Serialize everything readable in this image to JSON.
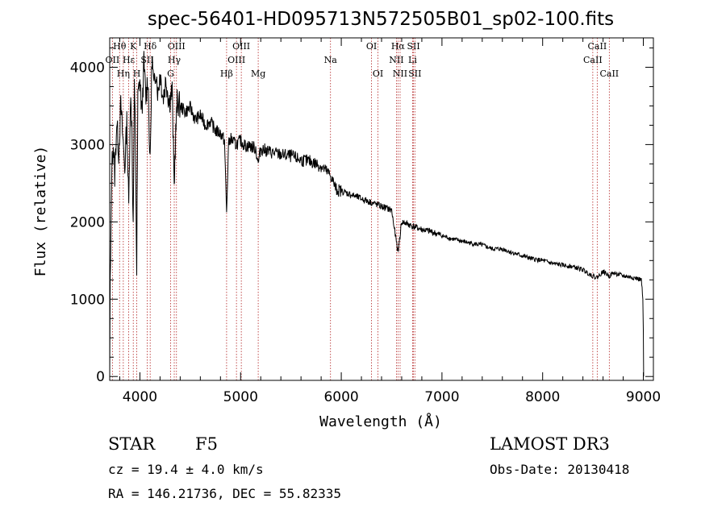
{
  "chart_data": {
    "type": "line",
    "title": "spec-56401-HD095713N572505B01_sp02-100.fits",
    "xlabel": "Wavelength (Å)",
    "ylabel": "Flux (relative)",
    "xlim": [
      3700,
      9100
    ],
    "ylim": [
      -50,
      4380
    ],
    "x_ticks": [
      4000,
      5000,
      6000,
      7000,
      8000,
      9000
    ],
    "y_ticks": [
      0,
      1000,
      2000,
      3000,
      4000
    ],
    "grid": false,
    "series": [
      {
        "name": "flux",
        "anchors": [
          [
            3700,
            0
          ],
          [
            3705,
            1200
          ],
          [
            3712,
            1700
          ],
          [
            3720,
            2700
          ],
          [
            3735,
            3000
          ],
          [
            3750,
            2600
          ],
          [
            3770,
            3300
          ],
          [
            3790,
            2900
          ],
          [
            3810,
            3500
          ],
          [
            3830,
            3100
          ],
          [
            3850,
            2700
          ],
          [
            3870,
            3300
          ],
          [
            3889,
            2200
          ],
          [
            3905,
            3600
          ],
          [
            3920,
            3300
          ],
          [
            3933,
            1900
          ],
          [
            3945,
            3700
          ],
          [
            3955,
            3200
          ],
          [
            3968,
            1300
          ],
          [
            3980,
            3600
          ],
          [
            4000,
            3850
          ],
          [
            4020,
            3400
          ],
          [
            4040,
            4050
          ],
          [
            4060,
            3600
          ],
          [
            4080,
            3900
          ],
          [
            4101,
            2700
          ],
          [
            4120,
            4150
          ],
          [
            4140,
            3700
          ],
          [
            4160,
            4000
          ],
          [
            4180,
            3650
          ],
          [
            4200,
            3950
          ],
          [
            4230,
            3600
          ],
          [
            4260,
            3850
          ],
          [
            4290,
            3550
          ],
          [
            4320,
            3700
          ],
          [
            4340,
            2450
          ],
          [
            4355,
            3150
          ],
          [
            4370,
            3550
          ],
          [
            4400,
            3500
          ],
          [
            4450,
            3420
          ],
          [
            4500,
            3480
          ],
          [
            4550,
            3320
          ],
          [
            4600,
            3380
          ],
          [
            4650,
            3250
          ],
          [
            4700,
            3300
          ],
          [
            4750,
            3180
          ],
          [
            4800,
            3150
          ],
          [
            4840,
            3050
          ],
          [
            4861,
            2100
          ],
          [
            4880,
            3000
          ],
          [
            4900,
            3080
          ],
          [
            4950,
            3000
          ],
          [
            5000,
            3050
          ],
          [
            5050,
            2980
          ],
          [
            5100,
            2980
          ],
          [
            5150,
            2950
          ],
          [
            5175,
            2750
          ],
          [
            5200,
            2950
          ],
          [
            5300,
            2900
          ],
          [
            5400,
            2870
          ],
          [
            5500,
            2850
          ],
          [
            5600,
            2800
          ],
          [
            5700,
            2780
          ],
          [
            5800,
            2720
          ],
          [
            5893,
            2600
          ],
          [
            5950,
            2420
          ],
          [
            6000,
            2400
          ],
          [
            6100,
            2350
          ],
          [
            6200,
            2300
          ],
          [
            6300,
            2250
          ],
          [
            6400,
            2200
          ],
          [
            6500,
            2150
          ],
          [
            6563,
            1600
          ],
          [
            6600,
            2000
          ],
          [
            6700,
            1950
          ],
          [
            6800,
            1900
          ],
          [
            6900,
            1870
          ],
          [
            7000,
            1820
          ],
          [
            7100,
            1780
          ],
          [
            7200,
            1750
          ],
          [
            7300,
            1720
          ],
          [
            7400,
            1700
          ],
          [
            7500,
            1650
          ],
          [
            7600,
            1650
          ],
          [
            7700,
            1600
          ],
          [
            7800,
            1560
          ],
          [
            7900,
            1520
          ],
          [
            8000,
            1500
          ],
          [
            8100,
            1460
          ],
          [
            8200,
            1440
          ],
          [
            8300,
            1420
          ],
          [
            8400,
            1380
          ],
          [
            8498,
            1300
          ],
          [
            8542,
            1280
          ],
          [
            8600,
            1360
          ],
          [
            8662,
            1300
          ],
          [
            8700,
            1340
          ],
          [
            8800,
            1300
          ],
          [
            8900,
            1280
          ],
          [
            8980,
            1250
          ],
          [
            8995,
            1000
          ],
          [
            9000,
            600
          ],
          [
            9003,
            0
          ]
        ]
      }
    ],
    "lines": [
      {
        "label": "Hθ",
        "wave": 3798,
        "row": 1
      },
      {
        "label": "OII",
        "wave": 3727,
        "row": 2
      },
      {
        "label": "Hη",
        "wave": 3835,
        "row": 3
      },
      {
        "label": "K",
        "wave": 3934,
        "row": 1
      },
      {
        "label": "Hε",
        "wave": 3889,
        "row": 2
      },
      {
        "label": "H",
        "wave": 3969,
        "row": 3
      },
      {
        "label": "Hδ",
        "wave": 4102,
        "row": 1
      },
      {
        "label": "SII",
        "wave": 4072,
        "row": 2
      },
      {
        "label": "OIII",
        "wave": 4363,
        "row": 1
      },
      {
        "label": "Hγ",
        "wave": 4341,
        "row": 2
      },
      {
        "label": "G",
        "wave": 4305,
        "row": 3
      },
      {
        "label": "OIII",
        "wave": 5007,
        "row": 1
      },
      {
        "label": "OIII",
        "wave": 4959,
        "row": 2
      },
      {
        "label": "Hβ",
        "wave": 4861,
        "row": 3
      },
      {
        "label": "Mg",
        "wave": 5175,
        "row": 3
      },
      {
        "label": "Na",
        "wave": 5893,
        "row": 2
      },
      {
        "label": "OI",
        "wave": 6300,
        "row": 1
      },
      {
        "label": "OI",
        "wave": 6364,
        "row": 3
      },
      {
        "label": "Hα",
        "wave": 6563,
        "row": 1
      },
      {
        "label": "SII",
        "wave": 6717,
        "row": 1
      },
      {
        "label": "NII",
        "wave": 6548,
        "row": 2
      },
      {
        "label": "Li",
        "wave": 6708,
        "row": 2
      },
      {
        "label": "NII",
        "wave": 6584,
        "row": 3
      },
      {
        "label": "SII",
        "wave": 6731,
        "row": 3
      },
      {
        "label": "CaII",
        "wave": 8542,
        "row": 1
      },
      {
        "label": "CaII",
        "wave": 8498,
        "row": 2
      },
      {
        "label": "CaII",
        "wave": 8662,
        "row": 3
      }
    ]
  },
  "info": {
    "class": "STAR",
    "subclass": "F5",
    "survey": "LAMOST DR3",
    "cz": "cz = 19.4 ± 4.0 km/s",
    "obs_date": "Obs-Date: 20130418",
    "coords": "RA = 146.21736, DEC =  55.82335"
  },
  "colors": {
    "axis": "#000000",
    "lines": "#b22222",
    "flux": "#000000"
  }
}
